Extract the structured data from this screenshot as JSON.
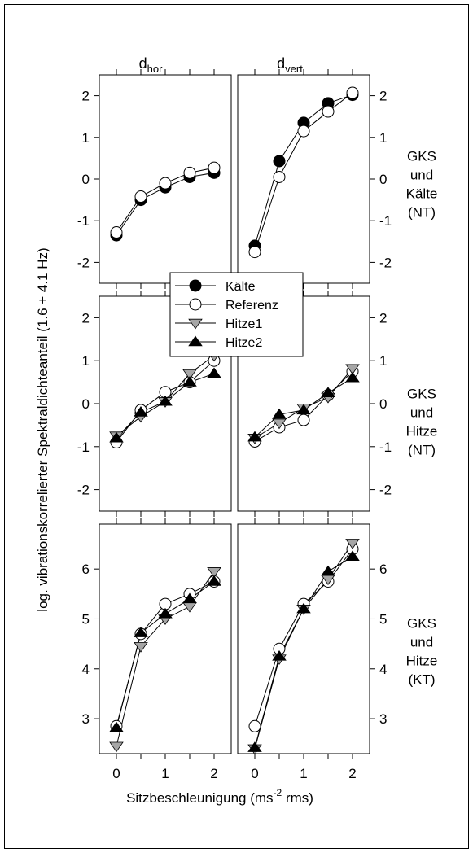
{
  "figure": {
    "ylabel": "log. vibrationskorrelierter Spektraldichteanteil (1.6 + 4.1 Hz)",
    "xlabel_main": "Sitzbeschleunigung (ms",
    "xlabel_sup": "-2",
    "xlabel_end": " rms)",
    "col1_main": "d",
    "col1_sub": "hor",
    "col2_main": "d",
    "col2_sub": "vert",
    "row_labels": [
      [
        "GKS",
        "und",
        "Kälte",
        "(NT)"
      ],
      [
        "GKS",
        "und",
        "Hitze",
        "(NT)"
      ],
      [
        "GKS",
        "und",
        "Hitze",
        "(KT)"
      ]
    ],
    "legend": [
      "Kälte",
      "Referenz",
      "Hitze1",
      "Hitze2"
    ],
    "colors": {
      "Kälte": "#000000",
      "Referenz": "#ffffff",
      "Hitze1": "#a6a6a6",
      "Hitze2": "#000000"
    }
  },
  "chart_data": [
    {
      "type": "line",
      "panel": "row1-col1",
      "x": [
        0,
        0.5,
        1,
        1.5,
        2
      ],
      "xticks": [
        0,
        1,
        2
      ],
      "ylim": [
        -2.5,
        2.5
      ],
      "yticks": [
        -2,
        -1,
        0,
        1,
        2
      ],
      "series": [
        {
          "name": "Kälte",
          "values": [
            -1.35,
            -0.5,
            -0.2,
            0.05,
            0.15
          ]
        },
        {
          "name": "Referenz",
          "values": [
            -1.28,
            -0.42,
            -0.1,
            0.15,
            0.27
          ]
        }
      ]
    },
    {
      "type": "line",
      "panel": "row1-col2",
      "x": [
        0,
        0.5,
        1,
        1.5,
        2
      ],
      "xticks": [
        0,
        1,
        2
      ],
      "ylim": [
        -2.5,
        2.5
      ],
      "yticks": [
        -2,
        -1,
        0,
        1,
        2
      ],
      "series": [
        {
          "name": "Kälte",
          "values": [
            -1.6,
            0.43,
            1.35,
            1.82,
            2.02
          ]
        },
        {
          "name": "Referenz",
          "values": [
            -1.75,
            0.05,
            1.15,
            1.62,
            2.07
          ]
        }
      ]
    },
    {
      "type": "line",
      "panel": "row2-col1",
      "x": [
        0,
        0.5,
        1,
        1.5,
        2
      ],
      "xticks": [
        0,
        1,
        2
      ],
      "ylim": [
        -2.5,
        2.5
      ],
      "yticks": [
        -2,
        -1,
        0,
        1,
        2
      ],
      "series": [
        {
          "name": "Referenz",
          "values": [
            -0.9,
            -0.15,
            0.27,
            0.5,
            1.0
          ]
        },
        {
          "name": "Hitze1",
          "values": [
            -0.75,
            -0.3,
            0.05,
            0.7,
            1.12
          ]
        },
        {
          "name": "Hitze2",
          "values": [
            -0.8,
            -0.2,
            0.05,
            0.5,
            0.7
          ]
        }
      ]
    },
    {
      "type": "line",
      "panel": "row2-col2",
      "x": [
        0,
        0.5,
        1,
        1.5,
        2
      ],
      "xticks": [
        0,
        1,
        2
      ],
      "ylim": [
        -2.5,
        2.5
      ],
      "yticks": [
        -2,
        -1,
        0,
        1,
        2
      ],
      "series": [
        {
          "name": "Referenz",
          "values": [
            -0.88,
            -0.55,
            -0.38,
            0.2,
            0.75
          ]
        },
        {
          "name": "Hitze1",
          "values": [
            -0.8,
            -0.45,
            -0.1,
            0.15,
            0.82
          ]
        },
        {
          "name": "Hitze2",
          "values": [
            -0.78,
            -0.25,
            -0.15,
            0.25,
            0.6
          ]
        }
      ]
    },
    {
      "type": "line",
      "panel": "row3-col1",
      "x": [
        0,
        0.5,
        1,
        1.5,
        2
      ],
      "xticks": [
        0,
        1,
        2
      ],
      "ylim": [
        2.3,
        6.9
      ],
      "yticks": [
        3,
        4,
        5,
        6
      ],
      "series": [
        {
          "name": "Referenz",
          "values": [
            2.85,
            4.7,
            5.3,
            5.5,
            5.75
          ]
        },
        {
          "name": "Hitze1",
          "values": [
            2.45,
            4.45,
            5.0,
            5.25,
            5.95
          ]
        },
        {
          "name": "Hitze2",
          "values": [
            2.82,
            4.72,
            5.1,
            5.4,
            5.75
          ]
        }
      ]
    },
    {
      "type": "line",
      "panel": "row3-col2",
      "x": [
        0,
        0.5,
        1,
        1.5,
        2
      ],
      "xticks": [
        0,
        1,
        2
      ],
      "ylim": [
        2.3,
        6.9
      ],
      "yticks": [
        3,
        4,
        5,
        6
      ],
      "series": [
        {
          "name": "Referenz",
          "values": [
            2.85,
            4.4,
            5.3,
            5.75,
            6.4
          ]
        },
        {
          "name": "Hitze1",
          "values": [
            2.4,
            4.2,
            5.2,
            5.8,
            6.52
          ]
        },
        {
          "name": "Hitze2",
          "values": [
            2.42,
            4.25,
            5.2,
            5.95,
            6.25
          ]
        }
      ]
    }
  ]
}
